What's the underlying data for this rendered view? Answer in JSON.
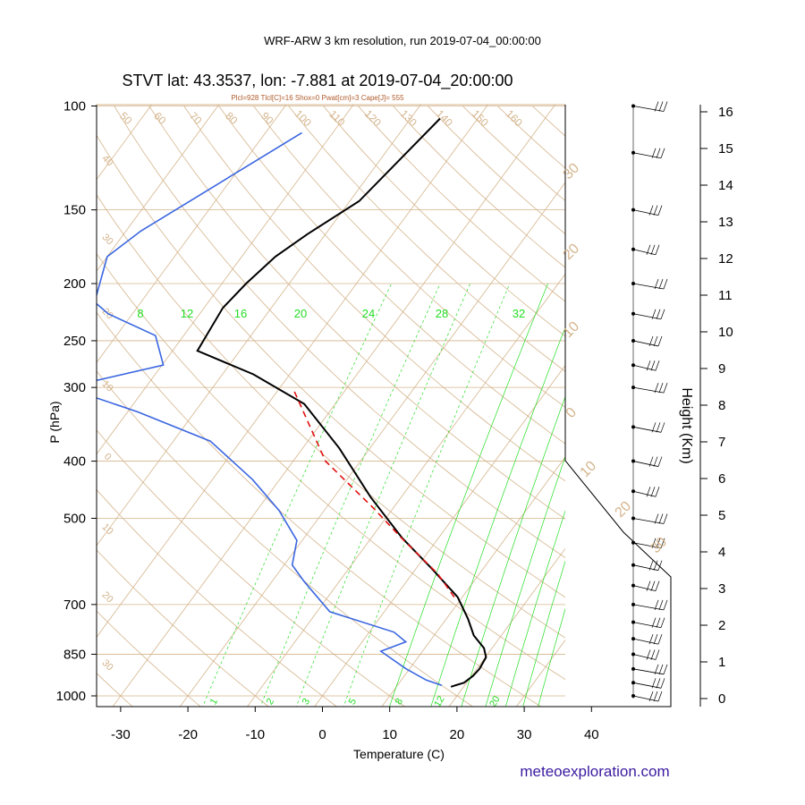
{
  "header": {
    "run_title": "WRF-ARW 3 km resolution, run 2019-07-04_00:00:00",
    "station_title": "STVT lat: 43.3537, lon: -7.881 at 2019-07-04_20:00:00",
    "indices": "Plcl=928 Tlcl[C]=16 Shox=0 Pwat[cm]=3 Cape[J]= 555"
  },
  "footer": {
    "site": "meteoexploration.com"
  },
  "colors": {
    "temperature": "#000000",
    "dewpoint": "#3a66e0",
    "parcel": "#e01010",
    "isotherm": "#d4b48c",
    "mixing_ratio": "#22dd22",
    "site": "#3a1aa0"
  },
  "chart_data": {
    "type": "line",
    "xlabel": "Temperature (C)",
    "ylabel": "P (hPa)",
    "right_axis_label": "Height (Km)",
    "x_ticks": [
      "-30",
      "-20",
      "-10",
      "0",
      "10",
      "20",
      "30",
      "40"
    ],
    "y_ticks": [
      "100",
      "150",
      "200",
      "250",
      "300",
      "400",
      "500",
      "700",
      "850",
      "1000"
    ],
    "height_ticks": [
      "16",
      "15",
      "14",
      "13",
      "12",
      "11",
      "10",
      "9",
      "8",
      "7",
      "6",
      "5",
      "4",
      "3",
      "2",
      "1",
      "0"
    ],
    "skewed_isotherm_labels": [
      "50",
      "60",
      "70",
      "80",
      "90",
      "100",
      "110",
      "120",
      "130",
      "140",
      "150",
      "160",
      "40",
      "30",
      "20",
      "10",
      "0",
      "10",
      "20",
      "30"
    ],
    "dry_adiabat_labels": [
      "30",
      "20",
      "10",
      "0",
      "10",
      "20",
      "30"
    ],
    "mixing_ratio_labels_top": [
      "8",
      "12",
      "16",
      "20",
      "24",
      "28",
      "32"
    ],
    "mixing_ratio_labels_bottom": [
      "1",
      "2",
      "3",
      "5",
      "8",
      "12",
      "20"
    ],
    "series": [
      {
        "name": "temperature",
        "points": [
          [
            -45.6,
            105
          ],
          [
            -48.6,
            145
          ],
          [
            -52.7,
            165
          ],
          [
            -55,
            180
          ],
          [
            -56.4,
            200
          ],
          [
            -57.2,
            220
          ],
          [
            -56.3,
            260
          ],
          [
            -45.4,
            285
          ],
          [
            -34.6,
            320
          ],
          [
            -24.6,
            380
          ],
          [
            -14.6,
            460
          ],
          [
            -5.4,
            540
          ],
          [
            2.5,
            610
          ],
          [
            9.3,
            680
          ],
          [
            13.2,
            740
          ],
          [
            15.9,
            790
          ],
          [
            18.8,
            830
          ],
          [
            20.1,
            860
          ],
          [
            20.4,
            900
          ],
          [
            20.2,
            925
          ],
          [
            19.6,
            950
          ],
          [
            18.1,
            965
          ]
        ]
      },
      {
        "name": "dewpoint",
        "points": [
          [
            -64.6,
            111
          ],
          [
            -77.8,
            163
          ],
          [
            -80,
            180
          ],
          [
            -76.9,
            215
          ],
          [
            -73.6,
            225
          ],
          [
            -64.2,
            245
          ],
          [
            -59.8,
            275
          ],
          [
            -71.9,
            300
          ],
          [
            -58.5,
            330
          ],
          [
            -44.5,
            370
          ],
          [
            -34,
            430
          ],
          [
            -26.7,
            485
          ],
          [
            -20.8,
            545
          ],
          [
            -18.8,
            600
          ],
          [
            -15.2,
            640
          ],
          [
            -8.1,
            720
          ],
          [
            3.7,
            780
          ],
          [
            6.5,
            810
          ],
          [
            3.8,
            840
          ],
          [
            9.5,
            900
          ],
          [
            13.7,
            940
          ],
          [
            16.6,
            960
          ]
        ]
      },
      {
        "name": "parcel",
        "dashed": true,
        "points": [
          [
            -37.4,
            305
          ],
          [
            -25.2,
            400
          ],
          [
            -13,
            480
          ],
          [
            -5.5,
            540
          ],
          [
            3.7,
            620
          ],
          [
            8.8,
            680
          ]
        ]
      }
    ]
  },
  "wind_barbs": {
    "levels_hpa": [
      100,
      120,
      150,
      175,
      200,
      225,
      250,
      275,
      300,
      350,
      400,
      450,
      500,
      550,
      600,
      650,
      700,
      750,
      800,
      850,
      900,
      950,
      1000
    ]
  }
}
